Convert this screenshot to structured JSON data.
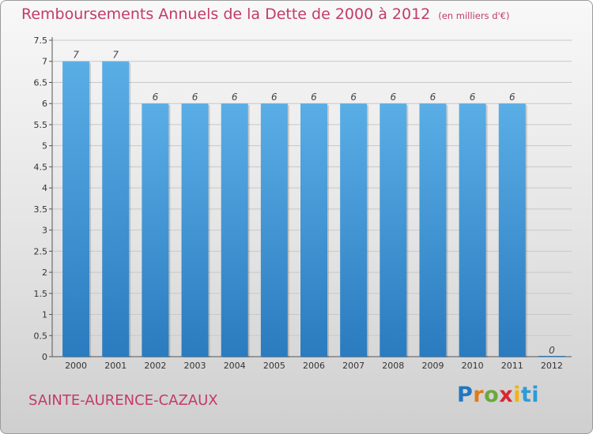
{
  "title": "Remboursements Annuels de la Dette de 2000 à 2012",
  "subtitle": "(en milliers d'€)",
  "commune": "SAINTE-AURENCE-CAZAUX",
  "logo": {
    "letters": [
      "P",
      "r",
      "o",
      "x",
      "i",
      "ti"
    ]
  },
  "colors": {
    "bar_top": "#5aaee6",
    "bar_bottom": "#2a7bbf",
    "title": "#c33a6b",
    "grid": "#c8c8c8"
  },
  "chart_data": {
    "type": "bar",
    "categories": [
      "2000",
      "2001",
      "2002",
      "2003",
      "2004",
      "2005",
      "2006",
      "2007",
      "2008",
      "2009",
      "2010",
      "2011",
      "2012"
    ],
    "values": [
      7,
      7,
      6,
      6,
      6,
      6,
      6,
      6,
      6,
      6,
      6,
      6,
      0
    ],
    "data_labels": [
      "7",
      "7",
      "6",
      "6",
      "6",
      "6",
      "6",
      "6",
      "6",
      "6",
      "6",
      "6",
      "0"
    ],
    "title": "Remboursements Annuels de la Dette de 2000 à 2012",
    "xlabel": "",
    "ylabel": "",
    "ylim": [
      0,
      7.5
    ],
    "yticks": [
      "0",
      "0.5",
      "1",
      "1.5",
      "2",
      "2.5",
      "3",
      "3.5",
      "4",
      "4.5",
      "5",
      "5.5",
      "6",
      "6.5",
      "7",
      "7.5"
    ],
    "grid": true,
    "legend": "none"
  }
}
